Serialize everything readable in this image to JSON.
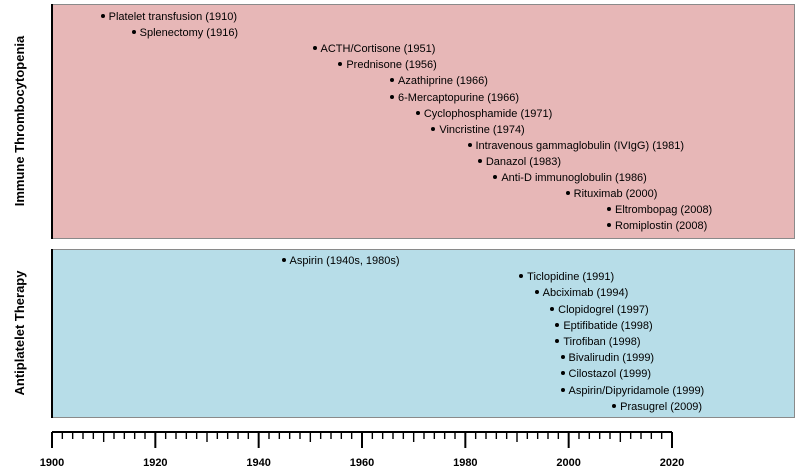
{
  "colors": {
    "itp_band": "#e7b7b7",
    "antiplatelet_band": "#b7dde8",
    "border": "#8a8a8a",
    "axis": "#000000"
  },
  "sections": {
    "itp": {
      "label": "Immune Thrombocytopenia"
    },
    "antiplatelet": {
      "label": "Antiplatelet Therapy"
    }
  },
  "itp_events": [
    {
      "label": "Platelet transfusion  (1910)",
      "year": 1910
    },
    {
      "label": "Splenectomy (1916)",
      "year": 1916
    },
    {
      "label": "ACTH/Cortisone (1951)",
      "year": 1951
    },
    {
      "label": "Prednisone (1956)",
      "year": 1956
    },
    {
      "label": "Azathiprine (1966)",
      "year": 1966
    },
    {
      "label": "6-Mercaptopurine (1966)",
      "year": 1966
    },
    {
      "label": "Cyclophosphamide (1971)",
      "year": 1971
    },
    {
      "label": "Vincristine (1974)",
      "year": 1974
    },
    {
      "label": "Intravenous gammaglobulin (IVIgG) (1981)",
      "year": 1981
    },
    {
      "label": "Danazol (1983)",
      "year": 1983
    },
    {
      "label": "Anti-D immunoglobulin (1986)",
      "year": 1986
    },
    {
      "label": "Rituximab (2000)",
      "year": 2000
    },
    {
      "label": "Eltrombopag (2008)",
      "year": 2008
    },
    {
      "label": "Romiplostin (2008)",
      "year": 2008
    }
  ],
  "antiplatelet_events": [
    {
      "label": "Aspirin (1940s, 1980s)",
      "year": 1945
    },
    {
      "label": "Ticlopidine (1991)",
      "year": 1991
    },
    {
      "label": "Abciximab (1994)",
      "year": 1994
    },
    {
      "label": "Clopidogrel (1997)",
      "year": 1997
    },
    {
      "label": "Eptifibatide (1998)",
      "year": 1998
    },
    {
      "label": "Tirofiban (1998)",
      "year": 1998
    },
    {
      "label": "Bivalirudin (1999)",
      "year": 1999
    },
    {
      "label": "Cilostazol (1999)",
      "year": 1999
    },
    {
      "label": "Aspirin/Dipyridamole (1999)",
      "year": 1999
    },
    {
      "label": "Prasugrel (2009)",
      "year": 2009
    }
  ],
  "axis": {
    "start": 1900,
    "end": 2020,
    "major_step": 20,
    "minor_step": 2,
    "mid_step": 10,
    "tick_labels": [
      "1900",
      "1920",
      "1940",
      "1960",
      "1980",
      "2000",
      "2020"
    ]
  }
}
